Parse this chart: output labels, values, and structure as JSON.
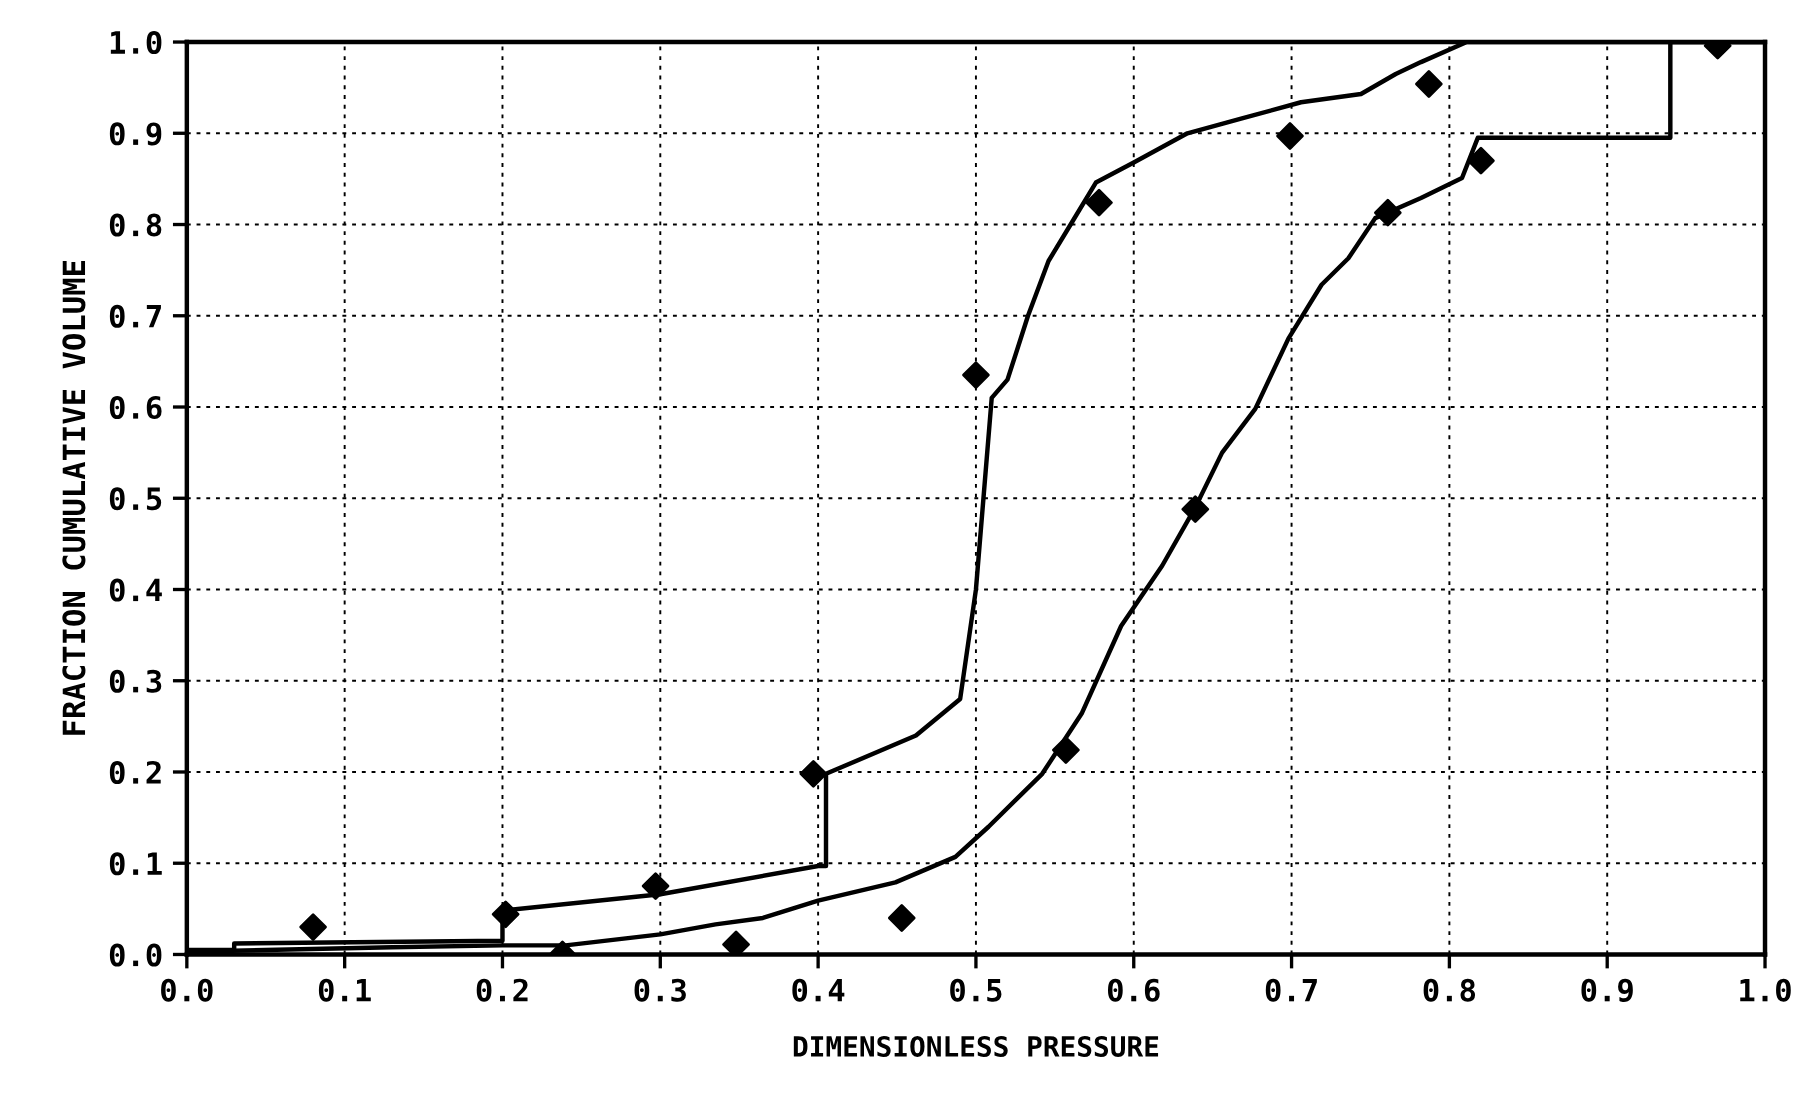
{
  "chart_data": {
    "type": "line",
    "xlabel": "DIMENSIONLESS PRESSURE",
    "ylabel": "FRACTION CUMULATIVE VOLUME",
    "xlim": [
      0,
      1
    ],
    "ylim": [
      0,
      1
    ],
    "xticks": [
      {
        "value": 0,
        "label": "0.0"
      },
      {
        "value": 0.1,
        "label": "0.1"
      },
      {
        "value": 0.2,
        "label": "0.2"
      },
      {
        "value": 0.3,
        "label": "0.3"
      },
      {
        "value": 0.4,
        "label": "0.4"
      },
      {
        "value": 0.5,
        "label": "0.5"
      },
      {
        "value": 0.6,
        "label": "0.6"
      },
      {
        "value": 0.7,
        "label": "0.7"
      },
      {
        "value": 0.8,
        "label": "0.8"
      },
      {
        "value": 0.9,
        "label": "0.9"
      },
      {
        "value": 1,
        "label": "1.0"
      }
    ],
    "yticks": [
      {
        "value": 0,
        "label": "0.0"
      },
      {
        "value": 0.1,
        "label": "0.1"
      },
      {
        "value": 0.2,
        "label": "0.2"
      },
      {
        "value": 0.3,
        "label": "0.3"
      },
      {
        "value": 0.4,
        "label": "0.4"
      },
      {
        "value": 0.5,
        "label": "0.5"
      },
      {
        "value": 0.6,
        "label": "0.6"
      },
      {
        "value": 0.7,
        "label": "0.7"
      },
      {
        "value": 0.8,
        "label": "0.8"
      },
      {
        "value": 0.9,
        "label": "0.9"
      },
      {
        "value": 1,
        "label": "1.0"
      }
    ],
    "grid": true,
    "series": [
      {
        "color": "#000000",
        "x": [
          0,
          0.03,
          0.03,
          0.2,
          0.2,
          0.3,
          0.4,
          0.405,
          0.405,
          0.462,
          0.49,
          0.49,
          0.5,
          0.5,
          0.51,
          0.51,
          0.52,
          0.533,
          0.546,
          0.56,
          0.576,
          0.6,
          0.634,
          0.668,
          0.706,
          0.744,
          0.766,
          0.782,
          0.811,
          1.0
        ],
        "values": [
          0.005,
          0.005,
          0.012,
          0.015,
          0.048,
          0.066,
          0.097,
          0.097,
          0.198,
          0.24,
          0.28,
          0.28,
          0.4,
          0.4,
          0.61,
          0.61,
          0.63,
          0.7,
          0.76,
          0.8,
          0.846,
          0.868,
          0.9,
          0.916,
          0.934,
          0.943,
          0.965,
          0.978,
          1.0,
          1.0
        ]
      },
      {
        "color": "#000000",
        "x": [
          0,
          0.13,
          0.2,
          0.2,
          0.24,
          0.3,
          0.335,
          0.365,
          0.4,
          0.449,
          0.487,
          0.508,
          0.542,
          0.567,
          0.592,
          0.618,
          0.639,
          0.656,
          0.677,
          0.698,
          0.719,
          0.736,
          0.753,
          0.782,
          0.808,
          0.818,
          0.94,
          0.94,
          1.0
        ],
        "values": [
          0.003,
          0.008,
          0.01,
          0.01,
          0.01,
          0.022,
          0.033,
          0.04,
          0.059,
          0.079,
          0.107,
          0.14,
          0.198,
          0.264,
          0.36,
          0.426,
          0.49,
          0.55,
          0.598,
          0.675,
          0.734,
          0.763,
          0.807,
          0.829,
          0.851,
          0.895,
          0.895,
          1.0,
          1.0
        ]
      },
      {
        "type": "scatter",
        "color": "#000000",
        "marker": "diamond",
        "x": [
          0.08,
          0.202,
          0.238,
          0.297,
          0.348,
          0.397,
          0.453,
          0.5,
          0.557,
          0.578,
          0.639,
          0.699,
          0.761,
          0.787,
          0.82,
          0.97
        ],
        "values": [
          0.03,
          0.044,
          0.0,
          0.075,
          0.011,
          0.198,
          0.04,
          0.635,
          0.224,
          0.824,
          0.488,
          0.897,
          0.813,
          0.954,
          0.87,
          0.996
        ]
      }
    ]
  }
}
